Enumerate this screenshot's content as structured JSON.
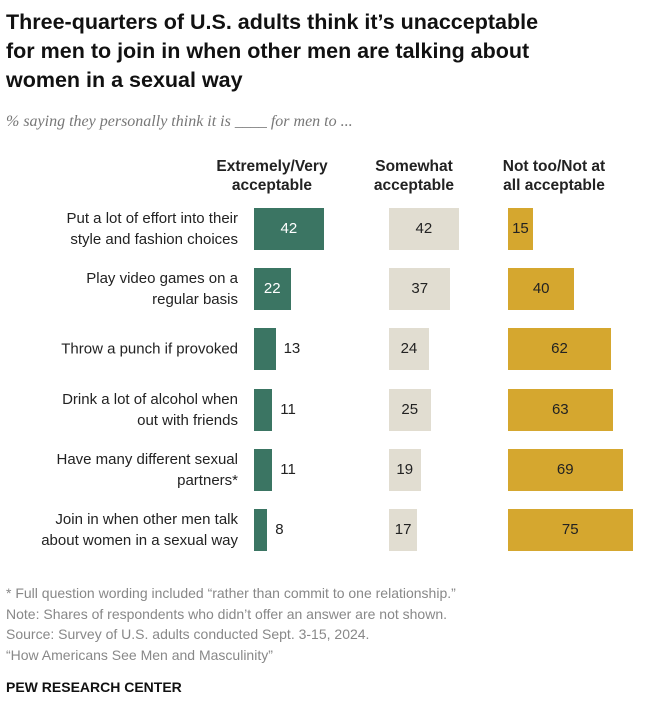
{
  "chart_data": {
    "type": "bar",
    "orientation": "horizontal",
    "title": "Three-quarters of U.S. adults think it’s unacceptable\nfor men to join in when other men are talking about\nwomen in a sexual way",
    "subtitle": "% saying they personally think it is ____ for men to ...",
    "categories": [
      "Put a lot of effort into their\nstyle and fashion choices",
      "Play video games on a\nregular basis",
      "Throw a punch if provoked",
      "Drink a lot of alcohol when\nout with friends",
      "Have many different sexual\npartners*",
      "Join in when other men talk\nabout women in a sexual way"
    ],
    "series": [
      {
        "name": "Extremely/Very\nacceptable",
        "color": "#3b7563",
        "values": [
          42,
          22,
          13,
          11,
          11,
          8
        ]
      },
      {
        "name": "Somewhat\nacceptable",
        "color": "#e1ddd1",
        "values": [
          42,
          37,
          24,
          25,
          19,
          17
        ]
      },
      {
        "name": "Not too/Not at\nall acceptable",
        "color": "#d5a72f",
        "values": [
          15,
          40,
          62,
          63,
          69,
          75
        ]
      }
    ],
    "notes": [
      "* Full question wording included “rather than commit to one relationship.”",
      "Note: Shares of respondents who didn’t offer an answer are not shown.",
      "Source: Survey of U.S. adults conducted Sept. 3-15, 2024.",
      "“How Americans See Men and Masculinity”"
    ],
    "source_org": "PEW RESEARCH CENTER"
  }
}
